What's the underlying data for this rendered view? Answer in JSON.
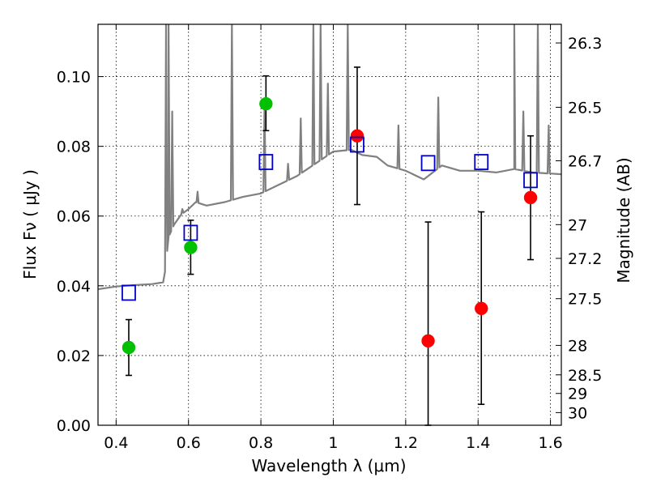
{
  "chart_data": {
    "type": "scatter",
    "xlabel": "Wavelength  λ (μm)",
    "ylabel": "Flux  Fν  ( μJy )",
    "y2label": "Magnitude (AB)",
    "xlim": [
      0.35,
      1.63
    ],
    "ylim": [
      0.0,
      0.115
    ],
    "x_ticks": [
      0.4,
      0.6,
      0.8,
      1.0,
      1.2,
      1.4,
      1.6
    ],
    "x_tick_labels": [
      "0.4",
      "0.6",
      "0.8",
      "1",
      "1.2",
      "1.4",
      "1.6"
    ],
    "y_ticks": [
      0.0,
      0.02,
      0.04,
      0.06,
      0.08,
      0.1
    ],
    "y_tick_labels": [
      "0.00",
      "0.02",
      "0.04",
      "0.06",
      "0.08",
      "0.10"
    ],
    "mag_ticks": [
      26.3,
      26.5,
      26.7,
      27,
      27.2,
      27.5,
      28,
      28.5,
      29,
      30
    ],
    "mag_tick_labels": [
      "26.3",
      "26.5",
      "26.7",
      "27",
      "27.2",
      "27.5",
      "28",
      "28.5",
      "29",
      "30"
    ],
    "grid": true,
    "series": [
      {
        "marker": "circle",
        "color": "#00c000",
        "points": [
          {
            "x": 0.435,
            "y": 0.0223,
            "err_low": 0.0143,
            "err_high": 0.0303
          },
          {
            "x": 0.606,
            "y": 0.051,
            "err_low": 0.0433,
            "err_high": 0.0588
          },
          {
            "x": 0.814,
            "y": 0.0922,
            "err_low": 0.0845,
            "err_high": 0.1002
          }
        ]
      },
      {
        "marker": "circle",
        "color": "#ff0000",
        "points": [
          {
            "x": 1.066,
            "y": 0.083,
            "err_low": 0.0633,
            "err_high": 0.1027
          },
          {
            "x": 1.262,
            "y": 0.0242,
            "err_low": 0.0,
            "err_high": 0.0583
          },
          {
            "x": 1.409,
            "y": 0.0335,
            "err_low": 0.006,
            "err_high": 0.0612
          },
          {
            "x": 1.545,
            "y": 0.0653,
            "err_low": 0.0475,
            "err_high": 0.083
          }
        ]
      },
      {
        "marker": "open-square",
        "color": "#0000cc",
        "points": [
          {
            "x": 0.435,
            "y": 0.038
          },
          {
            "x": 0.606,
            "y": 0.0552
          },
          {
            "x": 0.814,
            "y": 0.0755
          },
          {
            "x": 1.066,
            "y": 0.0805
          },
          {
            "x": 1.262,
            "y": 0.0752
          },
          {
            "x": 1.409,
            "y": 0.0755
          },
          {
            "x": 1.545,
            "y": 0.0703
          }
        ]
      }
    ],
    "spectrum": {
      "color": "#808080",
      "continuum": [
        [
          0.35,
          0.039
        ],
        [
          0.4,
          0.0398
        ],
        [
          0.45,
          0.0402
        ],
        [
          0.5,
          0.0405
        ],
        [
          0.53,
          0.041
        ],
        [
          0.535,
          0.044
        ],
        [
          0.545,
          0.054
        ],
        [
          0.56,
          0.0575
        ],
        [
          0.58,
          0.0605
        ],
        [
          0.6,
          0.062
        ],
        [
          0.62,
          0.064
        ],
        [
          0.65,
          0.063
        ],
        [
          0.7,
          0.064
        ],
        [
          0.75,
          0.0655
        ],
        [
          0.8,
          0.0665
        ],
        [
          0.85,
          0.069
        ],
        [
          0.9,
          0.0715
        ],
        [
          0.95,
          0.075
        ],
        [
          1.0,
          0.0785
        ],
        [
          1.05,
          0.079
        ],
        [
          1.08,
          0.0775
        ],
        [
          1.12,
          0.077
        ],
        [
          1.15,
          0.0745
        ],
        [
          1.2,
          0.073
        ],
        [
          1.25,
          0.0705
        ],
        [
          1.3,
          0.0745
        ],
        [
          1.35,
          0.073
        ],
        [
          1.4,
          0.073
        ],
        [
          1.45,
          0.0725
        ],
        [
          1.5,
          0.0735
        ],
        [
          1.55,
          0.0725
        ],
        [
          1.63,
          0.072
        ]
      ],
      "emission_lines": [
        [
          0.538,
          0.115
        ],
        [
          0.545,
          0.115
        ],
        [
          0.555,
          0.09
        ],
        [
          0.583,
          0.062
        ],
        [
          0.625,
          0.067
        ],
        [
          0.72,
          0.115
        ],
        [
          0.81,
          0.092
        ],
        [
          0.875,
          0.075
        ],
        [
          0.91,
          0.088
        ],
        [
          0.945,
          0.115
        ],
        [
          0.965,
          0.115
        ],
        [
          0.985,
          0.098
        ],
        [
          1.04,
          0.115
        ],
        [
          1.18,
          0.086
        ],
        [
          1.29,
          0.094
        ],
        [
          1.5,
          0.115
        ],
        [
          1.525,
          0.09
        ],
        [
          1.565,
          0.115
        ],
        [
          1.595,
          0.086
        ]
      ]
    }
  }
}
